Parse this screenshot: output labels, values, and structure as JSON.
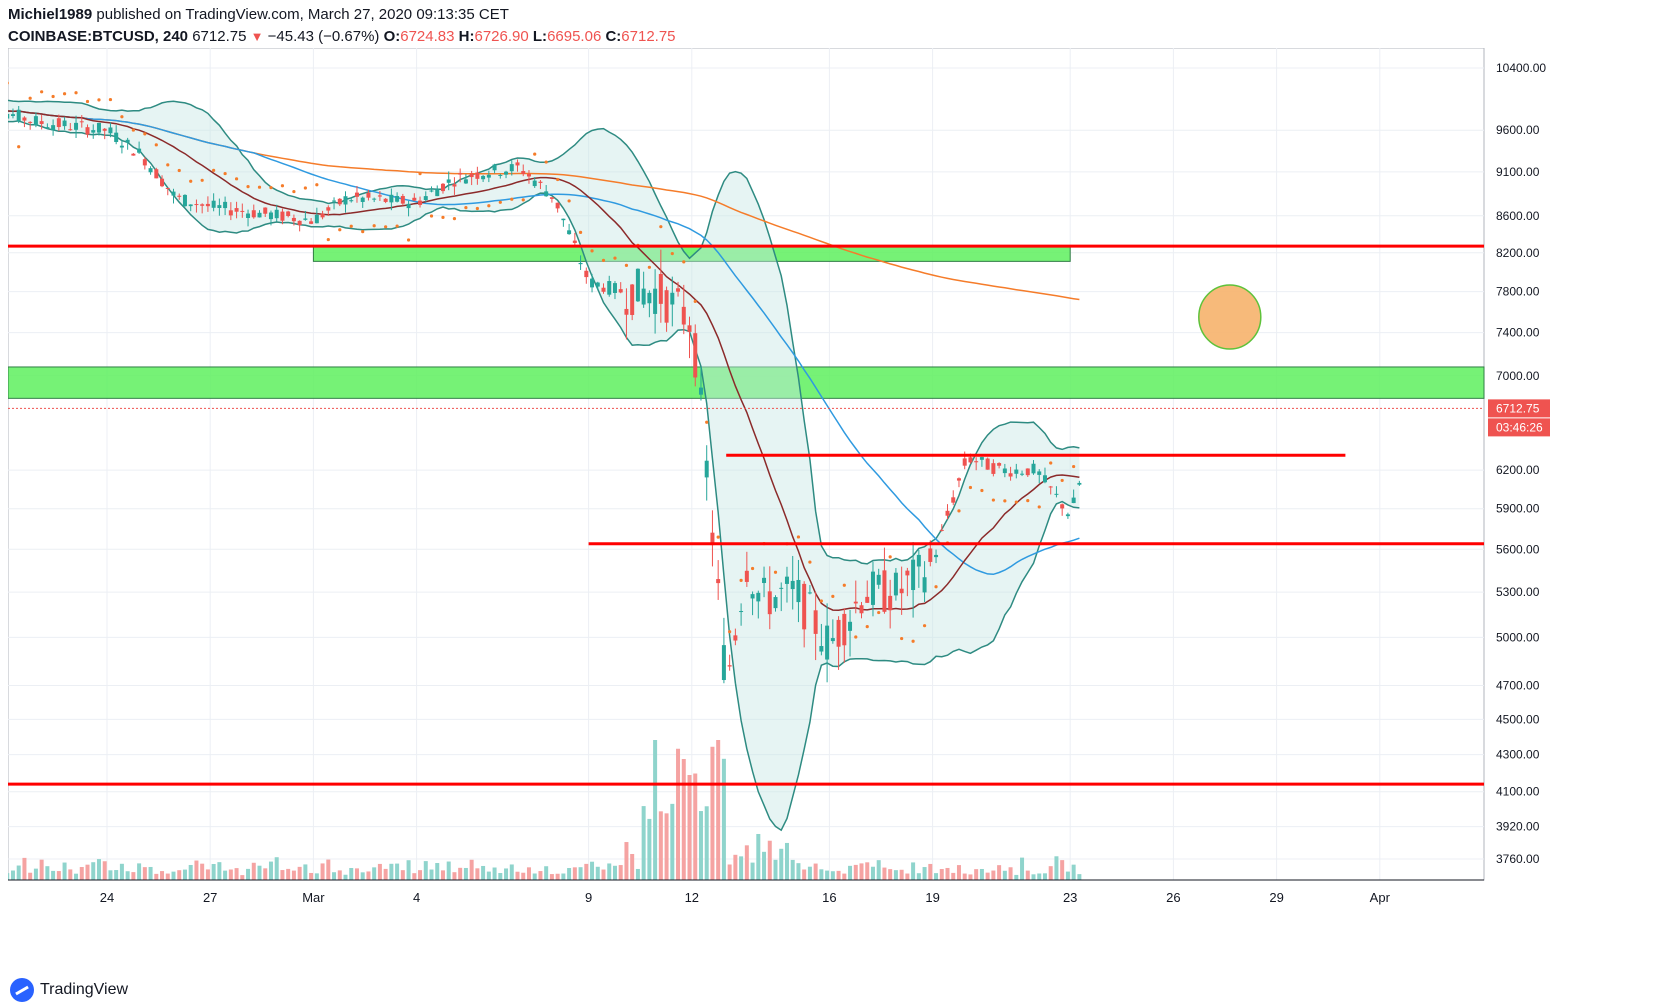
{
  "header": {
    "publisher": "Michiel1989",
    "published_text": "published on TradingView.com, March 27, 2020 09:13:35 CET",
    "symbol": "COINBASE:BTCUSD, 240",
    "last": "6712.75",
    "change": "−45.43 (−0.67%)",
    "open_label": "O:",
    "open": "6724.83",
    "high_label": "H:",
    "high": "6726.90",
    "low_label": "L:",
    "low": "6695.06",
    "close_label": "C:",
    "close": "6712.75"
  },
  "footer": {
    "brand": "TradingView"
  },
  "chart_data": {
    "type": "candlestick",
    "colors": {
      "up": "#26a69a",
      "down": "#ef5350",
      "hline": "#ff0000",
      "zone": "#5ef05e",
      "ema200": "#f57c2a",
      "ema50": "#2f9ae0",
      "ema20": "#8b2a2a",
      "sar": "#f57c2a"
    },
    "price_labels": [
      "10400.00",
      "9600.00",
      "9100.00",
      "8600.00",
      "8200.00",
      "7800.00",
      "7400.00",
      "7000.00",
      "6200.00",
      "5900.00",
      "5600.00",
      "5300.00",
      "5000.00",
      "4700.00",
      "4500.00",
      "4300.00",
      "4100.00",
      "3920.00",
      "3760.00"
    ],
    "x_labels": [
      "24",
      "27",
      "Mar",
      "4",
      "9",
      "12",
      "16",
      "19",
      "23",
      "26",
      "29",
      "Apr"
    ],
    "last_price_label": "6712.75",
    "countdown_label": "03:46:26",
    "horizontal_lines": [
      {
        "price": 8270,
        "from": "Feb 20",
        "to": "Apr 3"
      },
      {
        "price": 6320,
        "from": "Mar 13",
        "to": "Mar 31"
      },
      {
        "price": 5640,
        "from": "Mar 9",
        "to": "Apr 3"
      },
      {
        "price": 4140,
        "from": "Feb 20",
        "to": "Apr 3"
      }
    ],
    "zones": [
      {
        "price_top": 8270,
        "price_bottom": 8110,
        "from": "Mar 1",
        "to": "Mar 23"
      },
      {
        "price_top": 7080,
        "price_bottom": 6800,
        "from": "Feb 20",
        "to": "Apr 3"
      }
    ],
    "annotation_ellipse": {
      "price": 7550,
      "date": "Mar 27"
    }
  }
}
